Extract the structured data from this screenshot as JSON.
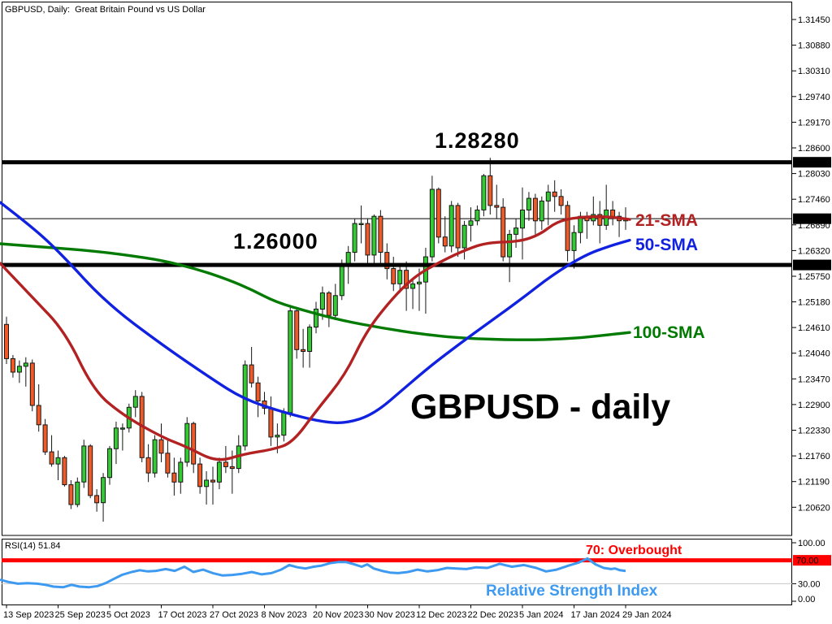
{
  "window": {
    "title": "GBPUSD, Daily:  Great Britain Pound vs US Dollar"
  },
  "chart_data": {
    "type": "candlestick",
    "symbol": "GBPUSD",
    "timeframe": "Daily",
    "description": "Great Britain Pound vs US Dollar",
    "annotations": {
      "resistance_text": "1.28280",
      "support_text": "1.26000",
      "sma21_label": "21-SMA",
      "sma50_label": "50-SMA",
      "sma100_label": "100-SMA",
      "watermark": "GBPUSD - daily",
      "overbought_text": "70: Overbought",
      "rsi_title": "Relative Strength Index",
      "rsi_status": "RSI(14) 51.84"
    },
    "levels": {
      "resistance": 1.2828,
      "resistance_tag": "1.28280",
      "support": 1.26,
      "support_tag": "1.26000",
      "current": 1.27027,
      "current_tag": "1.27027"
    },
    "y_ticks": [
      "1.31450",
      "1.30880",
      "1.30310",
      "1.29740",
      "1.29170",
      "1.28600",
      "1.28030",
      "1.27460",
      "1.26890",
      "1.26320",
      "1.25750",
      "1.25180",
      "1.24610",
      "1.24040",
      "1.23470",
      "1.22900",
      "1.22330",
      "1.21760",
      "1.21190",
      "1.20620"
    ],
    "x_ticks": [
      {
        "label": "13 Sep 2023",
        "index": 0
      },
      {
        "label": "25 Sep 2023",
        "index": 8
      },
      {
        "label": "5 Oct 2023",
        "index": 16
      },
      {
        "label": "17 Oct 2023",
        "index": 24
      },
      {
        "label": "27 Oct 2023",
        "index": 32
      },
      {
        "label": "8 Nov 2023",
        "index": 40
      },
      {
        "label": "20 Nov 2023",
        "index": 48
      },
      {
        "label": "30 Nov 2023",
        "index": 56
      },
      {
        "label": "12 Dec 2023",
        "index": 64
      },
      {
        "label": "22 Dec 2023",
        "index": 72
      },
      {
        "label": "5 Jan 2024",
        "index": 80
      },
      {
        "label": "17 Jan 2024",
        "index": 88
      },
      {
        "label": "29 Jan 2024",
        "index": 96
      }
    ],
    "candles": [
      [
        1.2468,
        1.2485,
        1.238,
        1.2392
      ],
      [
        1.2392,
        1.24,
        1.235,
        1.2362
      ],
      [
        1.2362,
        1.2388,
        1.2338,
        1.2375
      ],
      [
        1.2375,
        1.2395,
        1.233,
        1.2382
      ],
      [
        1.2382,
        1.239,
        1.2275,
        1.2288
      ],
      [
        1.2288,
        1.2335,
        1.223,
        1.2245
      ],
      [
        1.2245,
        1.2258,
        1.2178,
        1.2185
      ],
      [
        1.2185,
        1.2222,
        1.2152,
        1.2158
      ],
      [
        1.2158,
        1.2188,
        1.2122,
        1.2172
      ],
      [
        1.2172,
        1.2176,
        1.2108,
        1.2112
      ],
      [
        1.2112,
        1.2122,
        1.2058,
        1.2068
      ],
      [
        1.2068,
        1.2128,
        1.2062,
        1.2118
      ],
      [
        1.2118,
        1.2212,
        1.2105,
        1.2198
      ],
      [
        1.2198,
        1.2202,
        1.2082,
        1.2088
      ],
      [
        1.2088,
        1.2102,
        1.2052,
        1.2072
      ],
      [
        1.2072,
        1.2138,
        1.203,
        1.2128
      ],
      [
        1.2128,
        1.2198,
        1.2112,
        1.2192
      ],
      [
        1.2192,
        1.2252,
        1.2158,
        1.2238
      ],
      [
        1.2238,
        1.2248,
        1.2188,
        1.2238
      ],
      [
        1.2238,
        1.2292,
        1.2228,
        1.2284
      ],
      [
        1.2284,
        1.2322,
        1.2262,
        1.2308
      ],
      [
        1.2308,
        1.2318,
        1.2162,
        1.2172
      ],
      [
        1.2172,
        1.2202,
        1.2118,
        1.2138
      ],
      [
        1.2138,
        1.2222,
        1.2128,
        1.2212
      ],
      [
        1.2212,
        1.2248,
        1.2162,
        1.2182
      ],
      [
        1.2182,
        1.2212,
        1.2128,
        1.2138
      ],
      [
        1.2138,
        1.2172,
        1.2088,
        1.2118
      ],
      [
        1.2118,
        1.2172,
        1.2092,
        1.2162
      ],
      [
        1.2162,
        1.2262,
        1.2152,
        1.2248
      ],
      [
        1.2248,
        1.2252,
        1.2138,
        1.2158
      ],
      [
        1.2158,
        1.2172,
        1.2092,
        1.2108
      ],
      [
        1.2108,
        1.2142,
        1.2068,
        1.2122
      ],
      [
        1.2122,
        1.2152,
        1.2068,
        1.2118
      ],
      [
        1.2118,
        1.2172,
        1.2102,
        1.2162
      ],
      [
        1.2162,
        1.2198,
        1.2138,
        1.2152
      ],
      [
        1.2152,
        1.2188,
        1.2092,
        1.2148
      ],
      [
        1.2148,
        1.2222,
        1.2138,
        1.2198
      ],
      [
        1.2198,
        1.2388,
        1.2188,
        1.2378
      ],
      [
        1.2378,
        1.2418,
        1.2328,
        1.2338
      ],
      [
        1.2338,
        1.2352,
        1.2262,
        1.2298
      ],
      [
        1.2298,
        1.2318,
        1.2268,
        1.2282
      ],
      [
        1.2282,
        1.2308,
        1.2198,
        1.2218
      ],
      [
        1.2218,
        1.2248,
        1.2182,
        1.2222
      ],
      [
        1.2222,
        1.2282,
        1.2208,
        1.2272
      ],
      [
        1.2272,
        1.2508,
        1.2262,
        1.2498
      ],
      [
        1.2498,
        1.2502,
        1.2392,
        1.2412
      ],
      [
        1.2412,
        1.2458,
        1.2372,
        1.2408
      ],
      [
        1.2408,
        1.2468,
        1.2372,
        1.2462
      ],
      [
        1.2462,
        1.2518,
        1.2448,
        1.2502
      ],
      [
        1.2502,
        1.2552,
        1.2478,
        1.2538
      ],
      [
        1.2538,
        1.2542,
        1.2462,
        1.2488
      ],
      [
        1.2488,
        1.2558,
        1.2478,
        1.2532
      ],
      [
        1.2532,
        1.2612,
        1.2522,
        1.2602
      ],
      [
        1.2602,
        1.2642,
        1.2558,
        1.2628
      ],
      [
        1.2628,
        1.2702,
        1.2608,
        1.2692
      ],
      [
        1.2692,
        1.2732,
        1.2648,
        1.2692
      ],
      [
        1.2692,
        1.2702,
        1.2598,
        1.2622
      ],
      [
        1.2622,
        1.2712,
        1.2598,
        1.2708
      ],
      [
        1.2708,
        1.2722,
        1.2598,
        1.2628
      ],
      [
        1.2628,
        1.2648,
        1.2568,
        1.2592
      ],
      [
        1.2592,
        1.2618,
        1.2542,
        1.2558
      ],
      [
        1.2558,
        1.2602,
        1.2538,
        1.2588
      ],
      [
        1.2588,
        1.2608,
        1.2498,
        1.2548
      ],
      [
        1.2548,
        1.2572,
        1.2502,
        1.2558
      ],
      [
        1.2558,
        1.2592,
        1.2498,
        1.2562
      ],
      [
        1.2562,
        1.2638,
        1.2492,
        1.2618
      ],
      [
        1.2618,
        1.2798,
        1.2608,
        1.2768
      ],
      [
        1.2768,
        1.2772,
        1.2648,
        1.2662
      ],
      [
        1.2662,
        1.2708,
        1.2628,
        1.2642
      ],
      [
        1.2642,
        1.2742,
        1.2628,
        1.2732
      ],
      [
        1.2732,
        1.2738,
        1.2618,
        1.2638
      ],
      [
        1.2638,
        1.2698,
        1.2612,
        1.2688
      ],
      [
        1.2688,
        1.2728,
        1.2652,
        1.2698
      ],
      [
        1.2698,
        1.2732,
        1.2688,
        1.2722
      ],
      [
        1.2722,
        1.2802,
        1.2708,
        1.2798
      ],
      [
        1.2798,
        1.2838,
        1.2712,
        1.2732
      ],
      [
        1.2732,
        1.2778,
        1.2702,
        1.2728
      ],
      [
        1.2728,
        1.2748,
        1.2608,
        1.2618
      ],
      [
        1.2618,
        1.2678,
        1.2562,
        1.2668
      ],
      [
        1.2668,
        1.2702,
        1.2638,
        1.2682
      ],
      [
        1.2682,
        1.2772,
        1.2612,
        1.2722
      ],
      [
        1.2722,
        1.2762,
        1.2698,
        1.2748
      ],
      [
        1.2748,
        1.2758,
        1.2668,
        1.2698
      ],
      [
        1.2698,
        1.2752,
        1.2678,
        1.2742
      ],
      [
        1.2742,
        1.2778,
        1.2688,
        1.2762
      ],
      [
        1.2762,
        1.2788,
        1.2718,
        1.2752
      ],
      [
        1.2752,
        1.2768,
        1.2712,
        1.2732
      ],
      [
        1.2732,
        1.2742,
        1.2608,
        1.2632
      ],
      [
        1.2632,
        1.2688,
        1.2592,
        1.2672
      ],
      [
        1.2672,
        1.2718,
        1.2648,
        1.2708
      ],
      [
        1.2708,
        1.2718,
        1.2658,
        1.2698
      ],
      [
        1.2698,
        1.2752,
        1.2688,
        1.2712
      ],
      [
        1.2712,
        1.2742,
        1.2648,
        1.2688
      ],
      [
        1.2688,
        1.2778,
        1.2678,
        1.2722
      ],
      [
        1.2722,
        1.2742,
        1.2688,
        1.2708
      ],
      [
        1.2708,
        1.2718,
        1.2662,
        1.2698
      ],
      [
        1.2698,
        1.2728,
        1.2678,
        1.2703
      ]
    ],
    "sma": [
      {
        "name": "21-SMA",
        "color": "#B22222",
        "points": [
          [
            0,
            1.2604
          ],
          [
            40,
            1.2528
          ],
          [
            80,
            1.2452
          ],
          [
            115,
            1.2322
          ],
          [
            150,
            1.2268
          ],
          [
            200,
            1.2217
          ],
          [
            230,
            1.2196
          ],
          [
            267,
            1.2162
          ],
          [
            300,
            1.218
          ],
          [
            335,
            1.219
          ],
          [
            360,
            1.2205
          ],
          [
            390,
            1.2278
          ],
          [
            425,
            1.2356
          ],
          [
            450,
            1.245
          ],
          [
            480,
            1.252
          ],
          [
            510,
            1.2575
          ],
          [
            545,
            1.261
          ],
          [
            575,
            1.2635
          ],
          [
            600,
            1.265
          ],
          [
            640,
            1.2652
          ],
          [
            665,
            1.2668
          ],
          [
            685,
            1.2696
          ],
          [
            710,
            1.2706
          ],
          [
            745,
            1.2708
          ],
          [
            775,
            1.2701
          ]
        ]
      },
      {
        "name": "50-SMA",
        "color": "#1021E0",
        "points": [
          [
            0,
            1.2739
          ],
          [
            40,
            1.2684
          ],
          [
            75,
            1.2625
          ],
          [
            130,
            1.2517
          ],
          [
            200,
            1.2422
          ],
          [
            260,
            1.2348
          ],
          [
            300,
            1.2302
          ],
          [
            350,
            1.2272
          ],
          [
            395,
            1.2252
          ],
          [
            425,
            1.2248
          ],
          [
            460,
            1.2268
          ],
          [
            500,
            1.233
          ],
          [
            530,
            1.2376
          ],
          [
            565,
            1.2424
          ],
          [
            600,
            1.247
          ],
          [
            640,
            1.2522
          ],
          [
            680,
            1.2578
          ],
          [
            720,
            1.2622
          ],
          [
            750,
            1.2642
          ],
          [
            775,
            1.2655
          ]
        ]
      },
      {
        "name": "100-SMA",
        "color": "#007A00",
        "points": [
          [
            0,
            1.2647
          ],
          [
            60,
            1.2639
          ],
          [
            115,
            1.2631
          ],
          [
            160,
            1.2621
          ],
          [
            200,
            1.261
          ],
          [
            240,
            1.2592
          ],
          [
            280,
            1.2568
          ],
          [
            310,
            1.2545
          ],
          [
            340,
            1.2517
          ],
          [
            380,
            1.2496
          ],
          [
            420,
            1.2477
          ],
          [
            470,
            1.246
          ],
          [
            520,
            1.2446
          ],
          [
            570,
            1.2437
          ],
          [
            640,
            1.2433
          ],
          [
            700,
            1.2436
          ],
          [
            740,
            1.2443
          ],
          [
            775,
            1.245
          ]
        ]
      }
    ],
    "rsi": {
      "label": "RSI(14) 51.84",
      "period": 14,
      "value": 51.84,
      "overbought": 70,
      "oversold": 30,
      "overbought_tag": "70.00",
      "ticks": [
        "100.00",
        "30.00",
        "0.00"
      ],
      "tick_values": [
        100,
        30,
        0
      ],
      "line_color": "#3D9AF0",
      "overbought_color": "#FF0000",
      "oversold_color": "#C8C8C8",
      "points": [
        [
          0,
          37
        ],
        [
          10,
          33
        ],
        [
          22,
          30
        ],
        [
          34,
          31
        ],
        [
          46,
          30
        ],
        [
          56,
          28
        ],
        [
          66,
          25
        ],
        [
          78,
          24
        ],
        [
          88,
          28
        ],
        [
          98,
          25
        ],
        [
          110,
          24
        ],
        [
          120,
          26
        ],
        [
          130,
          31
        ],
        [
          140,
          38
        ],
        [
          150,
          45
        ],
        [
          162,
          50
        ],
        [
          172,
          53
        ],
        [
          182,
          51
        ],
        [
          192,
          52
        ],
        [
          204,
          55
        ],
        [
          215,
          52
        ],
        [
          227,
          59
        ],
        [
          238,
          50
        ],
        [
          250,
          54
        ],
        [
          262,
          48
        ],
        [
          274,
          44
        ],
        [
          286,
          45
        ],
        [
          298,
          47
        ],
        [
          310,
          50
        ],
        [
          322,
          46
        ],
        [
          334,
          48
        ],
        [
          346,
          54
        ],
        [
          356,
          62
        ],
        [
          366,
          58
        ],
        [
          376,
          56
        ],
        [
          386,
          59
        ],
        [
          396,
          61
        ],
        [
          406,
          65
        ],
        [
          416,
          67
        ],
        [
          426,
          67
        ],
        [
          436,
          63
        ],
        [
          445,
          59
        ],
        [
          452,
          63
        ],
        [
          460,
          56
        ],
        [
          470,
          52
        ],
        [
          480,
          49
        ],
        [
          490,
          48
        ],
        [
          502,
          50
        ],
        [
          514,
          54
        ],
        [
          526,
          51
        ],
        [
          538,
          53
        ],
        [
          550,
          57
        ],
        [
          562,
          56
        ],
        [
          574,
          55
        ],
        [
          586,
          58
        ],
        [
          600,
          57
        ],
        [
          615,
          64
        ],
        [
          630,
          59
        ],
        [
          645,
          62
        ],
        [
          660,
          57
        ],
        [
          672,
          51
        ],
        [
          685,
          54
        ],
        [
          700,
          61
        ],
        [
          712,
          66
        ],
        [
          723,
          73
        ],
        [
          733,
          63
        ],
        [
          743,
          57
        ],
        [
          752,
          55
        ],
        [
          757,
          56
        ],
        [
          763,
          53
        ],
        [
          770,
          51.84
        ]
      ]
    },
    "colors": {
      "bull": "#32CC32",
      "bear": "#F05A28",
      "candle_outline": "#151515",
      "level_line": "#000000",
      "current_line": "#000000",
      "tag_bg": "#000000",
      "tag_fg": "#FFFFFF",
      "sma21": "#B22222",
      "sma50": "#1021E0",
      "sma100": "#007A00",
      "rsi_blue": "#3D9AF0",
      "overbought_red": "#FF0000",
      "text": "#000000"
    }
  }
}
